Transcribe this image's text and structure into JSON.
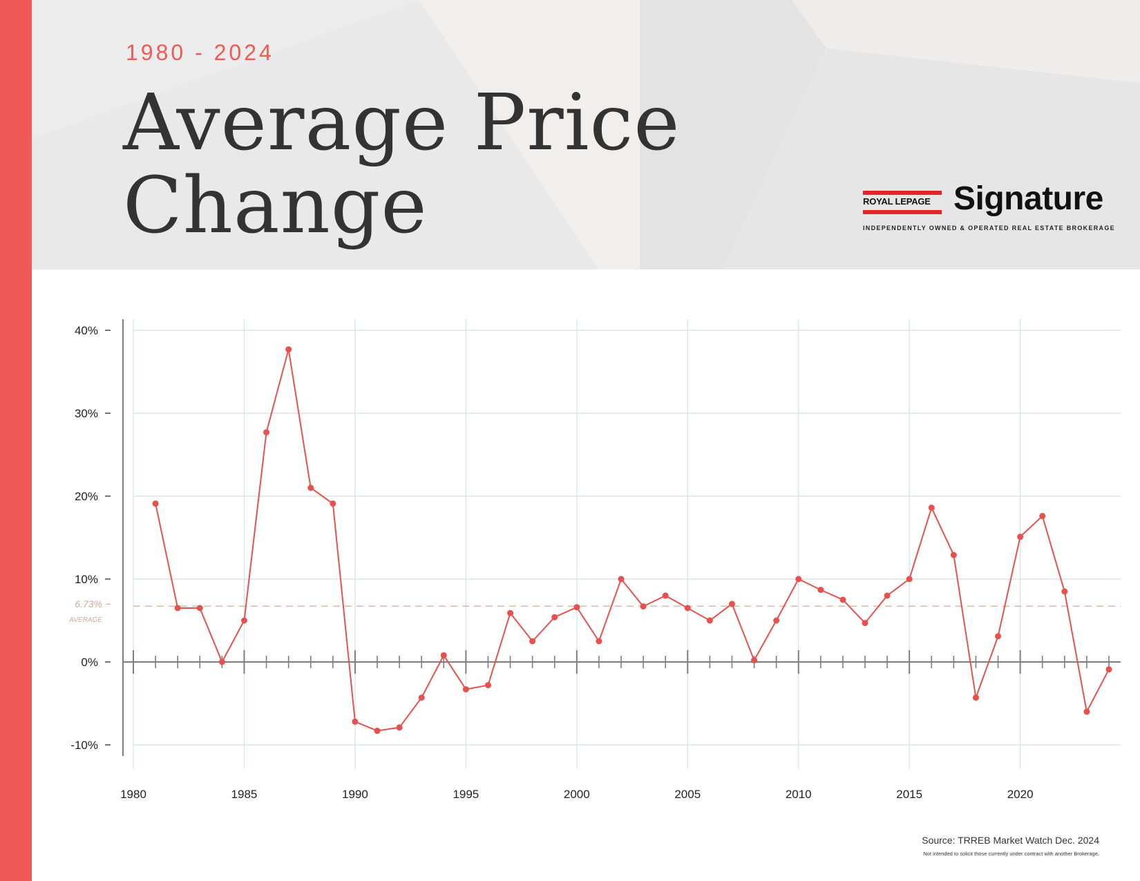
{
  "header": {
    "date_range": "1980 - 2024",
    "title_line1": "Average Price",
    "title_line2": "Change"
  },
  "logo": {
    "brand": "ROYAL LEPAGE",
    "wordmark": "Signature",
    "tagline": "INDEPENDENTLY OWNED & OPERATED REAL ESTATE BROKERAGE"
  },
  "footer": {
    "source": "Source: TRREB Market Watch Dec. 2024",
    "disclaimer": "Not intended to solicit those currently under contract with another Brokerage."
  },
  "colors": {
    "accent": "#f05a56",
    "line": "#e8504e",
    "grid_vertical": "#cfe6e3",
    "grid_horizontal": "#d6dde0",
    "average_line": "#d9a79a",
    "axis": "#7d7d7d"
  },
  "chart_data": {
    "type": "line",
    "title": "Average Price Change",
    "xlabel": "",
    "ylabel": "",
    "xlim": [
      1980,
      2024
    ],
    "ylim": [
      -10,
      40
    ],
    "x_ticks": [
      "1980",
      "1985",
      "1990",
      "1995",
      "2000",
      "2005",
      "2010",
      "2015",
      "2020"
    ],
    "y_ticks": [
      "40%",
      "30%",
      "20%",
      "10%",
      "0%",
      "-10%"
    ],
    "grid": true,
    "average": {
      "value": 6.73,
      "label": "6.73%",
      "sublabel": "AVERAGE"
    },
    "series": [
      {
        "x": [
          1981,
          1982,
          1983,
          1984,
          1985,
          1986,
          1987,
          1988,
          1989,
          1990,
          1991,
          1992,
          1993,
          1994,
          1995,
          1996,
          1997,
          1998,
          1999,
          2000,
          2001,
          2002,
          2003,
          2004,
          2005,
          2006,
          2007,
          2008,
          2009,
          2010,
          2011,
          2012,
          2013,
          2014,
          2015,
          2016,
          2017,
          2018,
          2019,
          2020,
          2021,
          2022,
          2023,
          2024
        ],
        "values": [
          19.1,
          6.5,
          6.5,
          0.0,
          5.0,
          27.7,
          37.7,
          21.0,
          19.1,
          -7.2,
          -8.3,
          -7.9,
          -4.3,
          0.8,
          -3.3,
          -2.8,
          5.9,
          2.5,
          5.4,
          6.6,
          2.5,
          10.0,
          6.7,
          8.0,
          6.5,
          5.0,
          7.0,
          0.2,
          5.0,
          10.0,
          8.7,
          7.5,
          4.7,
          8.0,
          10.0,
          18.6,
          12.9,
          -4.3,
          3.1,
          15.1,
          17.6,
          8.5,
          -6.0,
          -0.9
        ]
      }
    ]
  }
}
